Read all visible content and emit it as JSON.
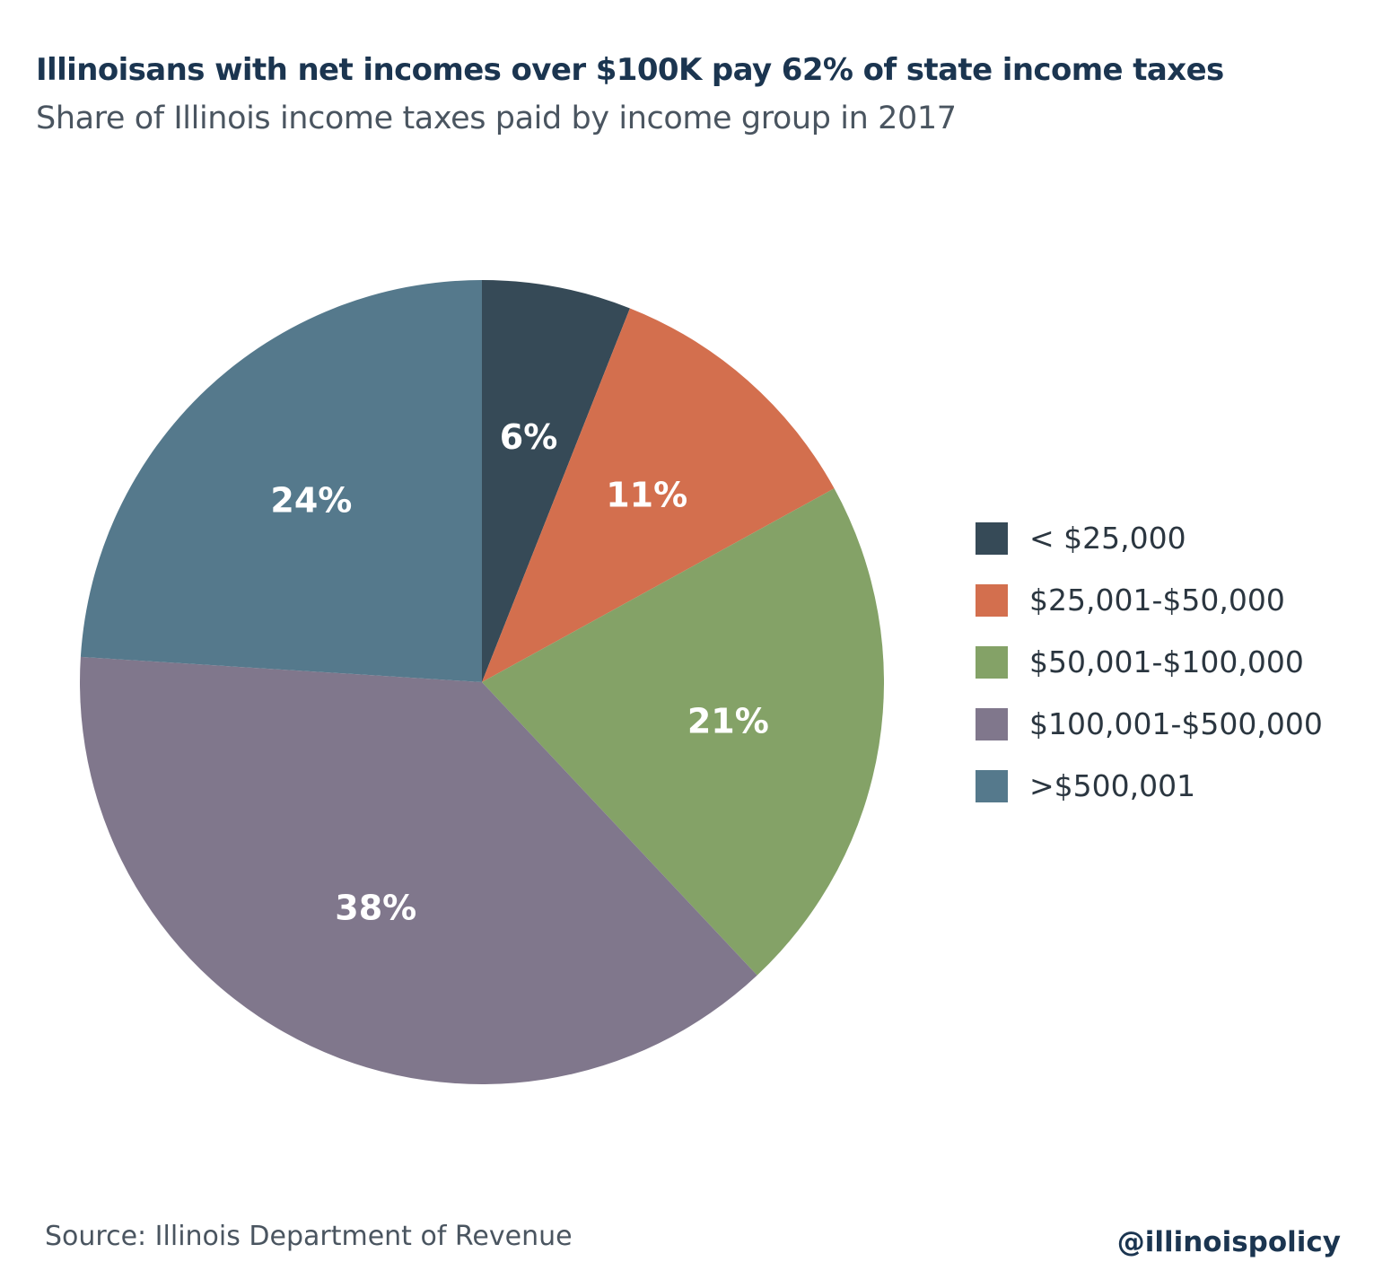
{
  "header": {
    "title": "Illinoisans with net incomes over $100K pay 62% of state income taxes",
    "subtitle": "Share of Illinois income taxes paid by income group in 2017"
  },
  "chart_data": {
    "type": "pie",
    "title": "Illinoisans with net incomes over $100K pay 62% of state income taxes",
    "subtitle": "Share of Illinois income taxes paid by income group in 2017",
    "start_angle": "12 o'clock",
    "direction": "clockwise",
    "legend_position": "right",
    "slices": [
      {
        "name": "< $25,000",
        "value": 6,
        "label": "6%",
        "color": "#364a57"
      },
      {
        "name": "$25,001-$50,000",
        "value": 11,
        "label": "11%",
        "color": "#d36f4e"
      },
      {
        "name": "$50,001-$100,000",
        "value": 21,
        "label": "21%",
        "color": "#84a267"
      },
      {
        "name": "$100,001-$500,000",
        "value": 38,
        "label": "38%",
        "color": "#80778c"
      },
      {
        "name": ">$500,001",
        "value": 24,
        "label": "24%",
        "color": "#55798c"
      }
    ]
  },
  "footer": {
    "source": "Source: Illinois Department of Revenue",
    "handle": "@illinoispolicy"
  }
}
